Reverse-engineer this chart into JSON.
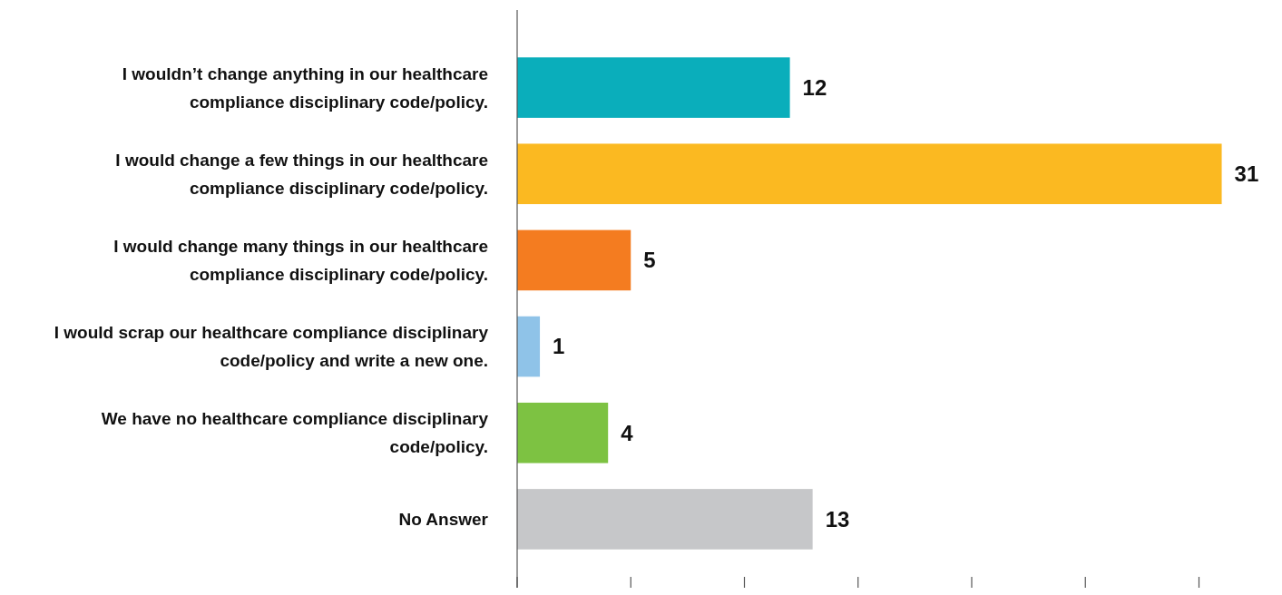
{
  "chart_data": {
    "type": "bar",
    "orientation": "horizontal",
    "categories": [
      "I wouldn’t change anything in our healthcare compliance disciplinary code/policy.",
      "I would change a few things in our healthcare compliance disciplinary code/policy.",
      "I would change many things in our healthcare compliance disciplinary code/policy.",
      "I would scrap our healthcare compliance disciplinary code/policy and write a new one.",
      "We have no healthcare compliance disciplinary code/policy.",
      "No Answer"
    ],
    "values": [
      12,
      31,
      5,
      1,
      4,
      13
    ],
    "colors": [
      "#0aaebb",
      "#fbb921",
      "#f47c20",
      "#8fc3e8",
      "#7dc242",
      "#c6c7c9"
    ],
    "data_labels": true,
    "xticks": [
      {
        "value": 0,
        "label": null
      },
      {
        "value": 5,
        "label": null
      },
      {
        "value": 10,
        "label": null
      },
      {
        "value": 15,
        "label": null
      },
      {
        "value": 20,
        "label": null
      },
      {
        "value": 25,
        "label": null
      },
      {
        "value": 30,
        "label": null
      }
    ],
    "tick_labels": "y"
  }
}
